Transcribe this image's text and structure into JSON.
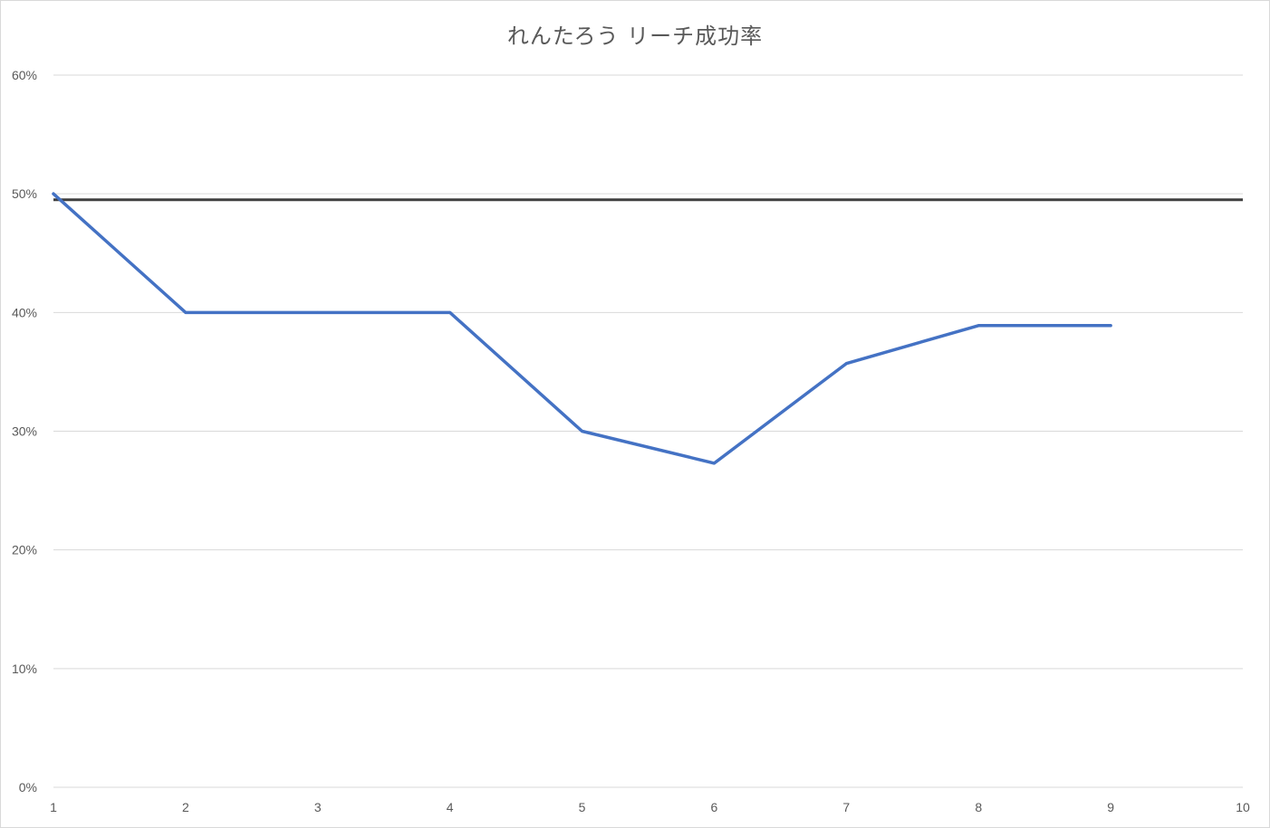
{
  "chart_data": {
    "type": "line",
    "title": "れんたろう リーチ成功率",
    "x": [
      1,
      2,
      3,
      4,
      5,
      6,
      7,
      8,
      9
    ],
    "xlim": [
      1,
      10
    ],
    "xticks": [
      "1",
      "2",
      "3",
      "4",
      "5",
      "6",
      "7",
      "8",
      "9",
      "10"
    ],
    "ylim": [
      0,
      0.6
    ],
    "yticks": [
      "0%",
      "10%",
      "20%",
      "30%",
      "40%",
      "50%",
      "60%"
    ],
    "grid": true,
    "series": [
      {
        "values": [
          0.5,
          0.4,
          0.4,
          0.4,
          0.3,
          0.273,
          0.357,
          0.389,
          0.389
        ],
        "color": "#4472c4"
      }
    ],
    "reference_line": {
      "y": 0.495,
      "color": "#404040"
    }
  }
}
